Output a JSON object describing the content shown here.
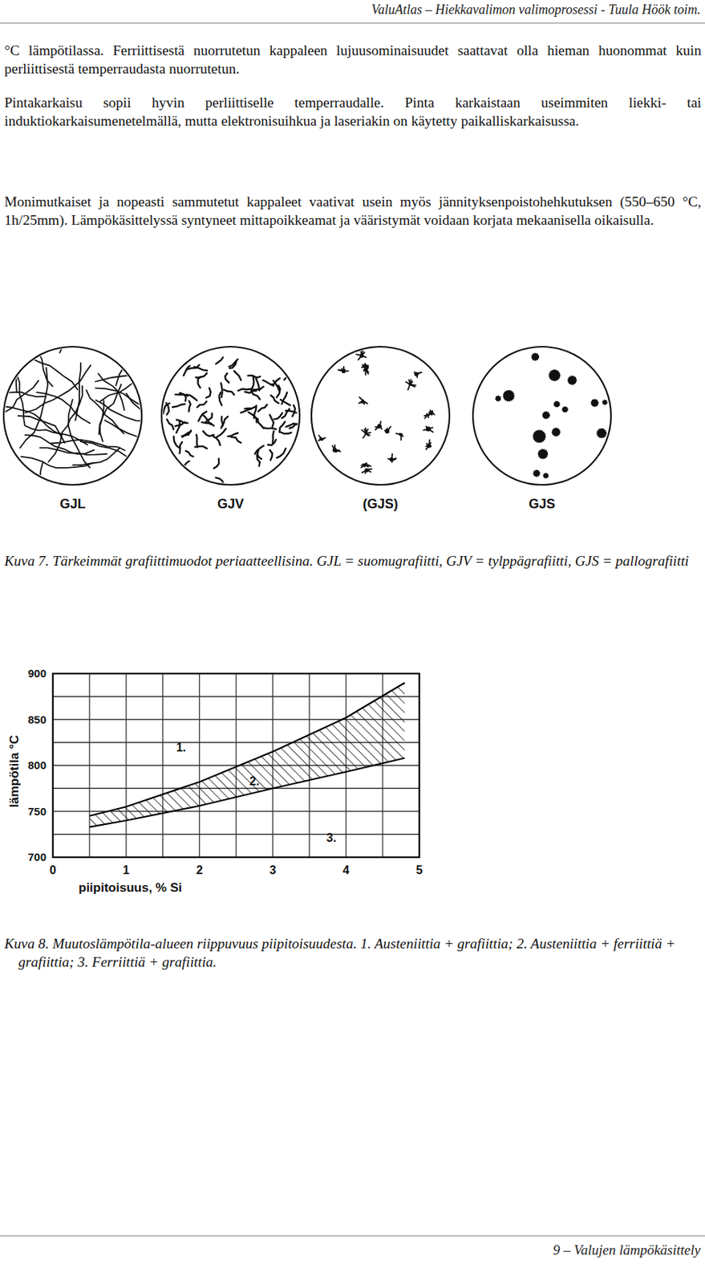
{
  "header": "ValuAtlas – Hiekkavalimon valimoprosessi - Tuula Höök toim.",
  "paragraphs": [
    "°C lämpötilassa. Ferriittisestä nuorrutetun kappaleen lujuusominaisuudet saattavat olla hieman huonommat kuin perliittisestä temperraudasta nuorrutetun.",
    "Pintakarkaisu sopii hyvin perliittiselle temperraudalle. Pinta karkaistaan useimmiten liekki- tai induktiokarkaisumenetelmällä, mutta elektronisuihkua ja laseriakin on käytetty paikalliskarkaisussa.",
    "Monimutkaiset ja nopeasti sammutetut kappaleet vaativat usein myös jännityksenpoistohehkutuksen (550–650 °C, 1h/25mm). Lämpökäsittelyssä syntyneet mittapoikkeamat ja vääristymät voidaan korjata mekaanisella oikaisulla."
  ],
  "figure_7": {
    "labels": [
      "GJL",
      "GJV",
      "(GJS)",
      "GJS"
    ],
    "caption": {
      "label": "Kuva 7.",
      "text": "Tärkeimmät grafiittimuodot periaatteellisina. GJL = suomugrafiitti, GJV = tylppägrafiitti, GJS = pallografiitti"
    }
  },
  "chart_data": {
    "type": "line",
    "x": [
      0.5,
      1,
      2,
      3,
      4,
      4.8
    ],
    "series": [
      {
        "color": "#000000",
        "values": [
          745,
          755,
          782,
          815,
          852,
          890
        ]
      },
      {
        "color": "#000000",
        "values": [
          733,
          740,
          756,
          775,
          793,
          808
        ]
      }
    ],
    "xlim": [
      0,
      5
    ],
    "ylim": [
      700,
      900
    ],
    "xticks": [
      0,
      1,
      2,
      3,
      4,
      5
    ],
    "yticks": [
      700,
      750,
      800,
      850,
      900
    ],
    "grid": true,
    "x_label": "piipitoisuus, % Si",
    "y_label": "lämpötila °C",
    "annotations": [
      {
        "text": "1.",
        "x": 1.75,
        "y": 820
      },
      {
        "text": "2.",
        "x": 2.75,
        "y": 783
      },
      {
        "text": "3.",
        "x": 3.8,
        "y": 722
      }
    ]
  },
  "figure_8_caption": {
    "label": "Kuva 8.",
    "text": "Muutoslämpötila-alueen riippuvuus piipitoisuudesta. 1. Austeniittia + grafiittia; 2. Austeniittia + ferriittiä + grafiittia; 3. Ferriittiä + grafiittia."
  },
  "footer": "9 – Valujen lämpökäsittely"
}
